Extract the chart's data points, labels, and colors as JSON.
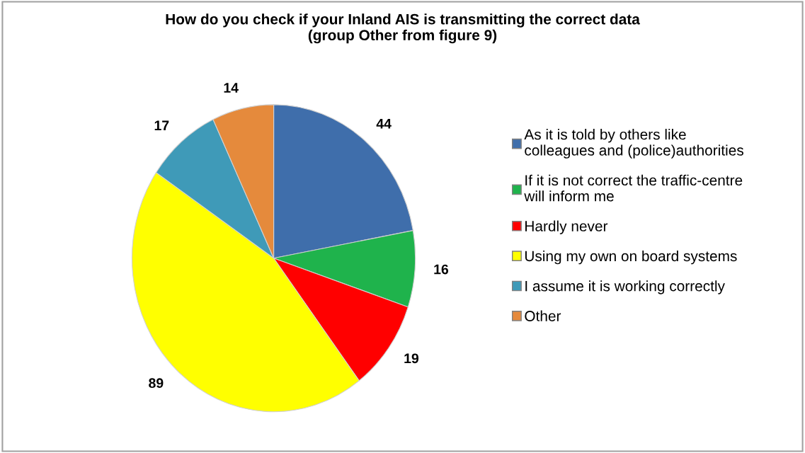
{
  "chart_data": {
    "type": "pie",
    "title": "How do you check if your Inland AIS is transmitting the correct data\n(group Other from figure 9)",
    "categories": [
      "As it is told by others like\ncolleagues and (police)authorities",
      "If it is not correct the traffic-centre\nwill inform me",
      "Hardly never",
      "Using my own on board systems",
      "I assume it is working correctly",
      "Other"
    ],
    "values": [
      44,
      16,
      19,
      89,
      17,
      14
    ],
    "colors": [
      "#3f6eab",
      "#1fb34c",
      "#ff0000",
      "#ffff00",
      "#3f9ab8",
      "#e58a3c"
    ],
    "data_labels": true,
    "legend": "right"
  }
}
